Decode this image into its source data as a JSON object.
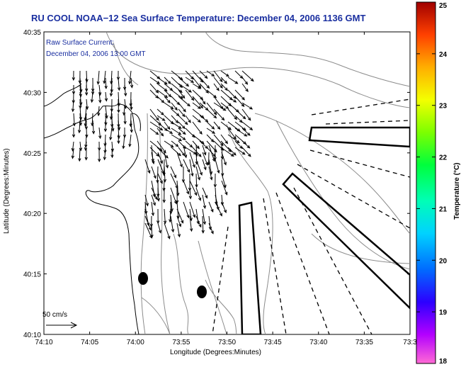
{
  "title": "RU COOL  NOAA−12  Sea Surface Temperature:  December 04, 2006 1136 GMT",
  "current": {
    "line1": "Raw Surface Current:",
    "line2": "December 04, 2006 13:00 GMT"
  },
  "axes": {
    "xlabel": "Longitude (Degrees:Minutes)",
    "ylabel": "Latitude (Degrees:Minutes)",
    "xticks": [
      "74:10",
      "74:05",
      "74:00",
      "73:55",
      "73:50",
      "73:45",
      "73:40",
      "73:35",
      "73:3"
    ],
    "yticks": [
      "40:35",
      "40:30",
      "40:25",
      "40:20",
      "40:15",
      "40:10"
    ]
  },
  "colorbar": {
    "label": "Temperature (°C)",
    "ticks": [
      "25",
      "24",
      "23",
      "22",
      "21",
      "20",
      "19",
      "18"
    ],
    "min": 18,
    "max": 25
  },
  "scale_label": "50 cm/s",
  "colors": {
    "title": "#1a2fa0",
    "contour": "#8c8c8c",
    "coast": "#000000"
  }
}
